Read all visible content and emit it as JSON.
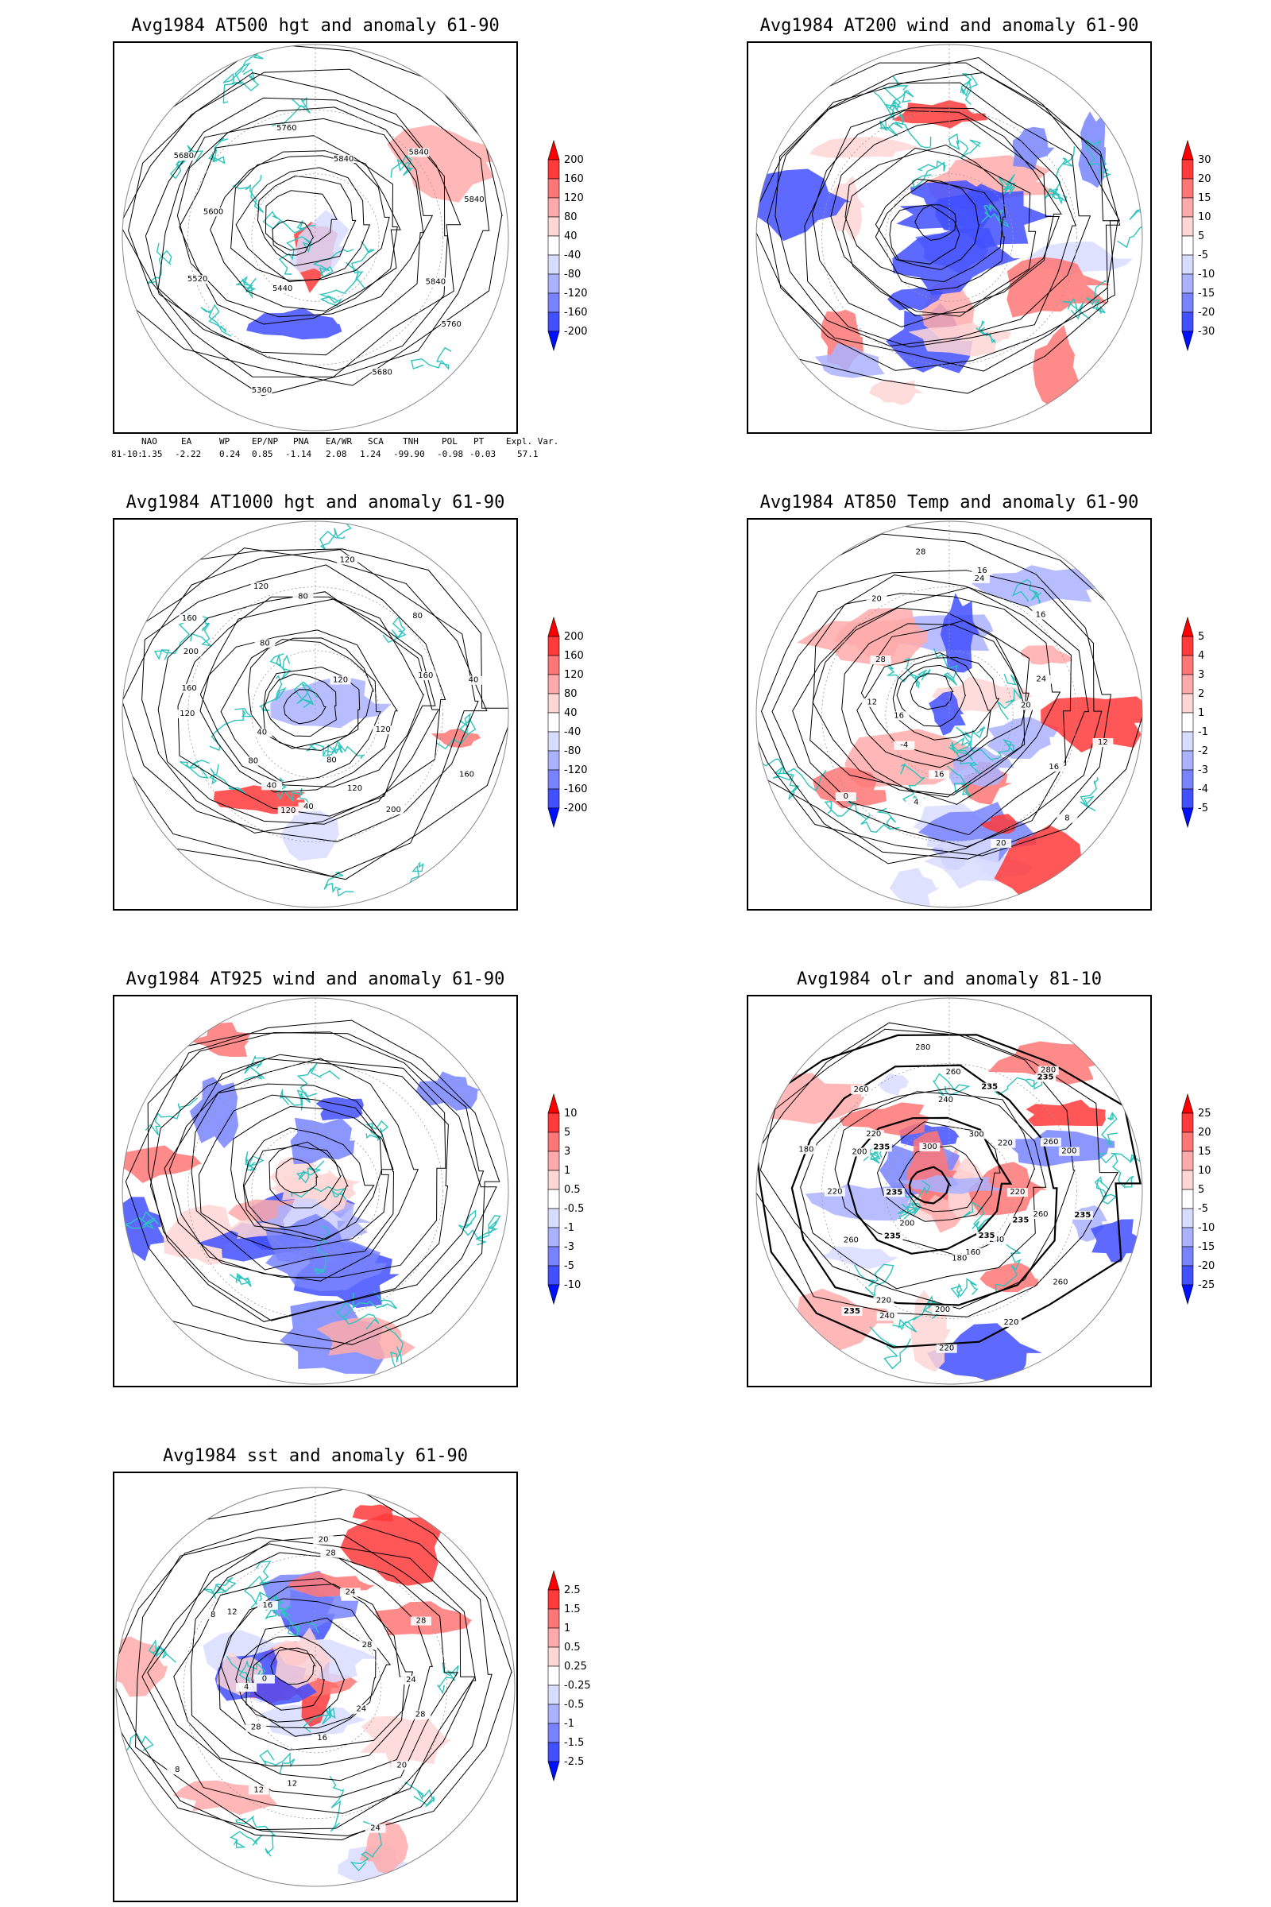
{
  "panels": [
    {
      "id": "at500",
      "title": "Avg1984 AT500 hgt and anomaly 61-90",
      "field": "hgt",
      "contour_labels": [
        "5840",
        "5760",
        "5680",
        "5360",
        "5440",
        "5520",
        "5600",
        "5680",
        "5760",
        "5840",
        "5840",
        "5840"
      ],
      "colorbar": [
        "200",
        "160",
        "120",
        "80",
        "40",
        "-40",
        "-80",
        "-120",
        "-160",
        "-200"
      ]
    },
    {
      "id": "at200",
      "title": "Avg1984 AT200 wind and anomaly 61-90",
      "field": "wind",
      "contour_labels": [],
      "colorbar": [
        "30",
        "20",
        "15",
        "10",
        "5",
        "-5",
        "-10",
        "-15",
        "-20",
        "-30"
      ]
    },
    {
      "id": "at1000",
      "title": "Avg1984 AT1000 hgt and anomaly 61-90",
      "field": "hgt",
      "contour_labels": [
        "120",
        "160",
        "200",
        "120",
        "80",
        "40",
        "120",
        "40",
        "80",
        "40",
        "120",
        "160",
        "200",
        "160",
        "80",
        "120",
        "80",
        "120",
        "120",
        "80",
        "160",
        "40"
      ],
      "colorbar": [
        "200",
        "160",
        "120",
        "80",
        "40",
        "-40",
        "-80",
        "-120",
        "-160",
        "-200"
      ]
    },
    {
      "id": "at850",
      "title": "Avg1984 AT850 Temp and anomaly 61-90",
      "field": "temp",
      "contour_labels": [
        "12",
        "16",
        "8",
        "20",
        "16",
        "4",
        "0",
        "-4",
        "16",
        "12",
        "28",
        "20",
        "28",
        "24",
        "16",
        "16",
        "24",
        "20"
      ],
      "colorbar": [
        "5",
        "4",
        "3",
        "2",
        "1",
        "-1",
        "-2",
        "-3",
        "-4",
        "-5"
      ]
    },
    {
      "id": "at925",
      "title": "Avg1984 AT925 wind and anomaly 61-90",
      "field": "wind",
      "contour_labels": [],
      "colorbar": [
        "10",
        "5",
        "3",
        "1",
        "0.5",
        "-0.5",
        "-1",
        "-3",
        "-5",
        "-10"
      ]
    },
    {
      "id": "olr",
      "title": "Avg1984 olr and anomaly 81-10",
      "field": "olr",
      "contour_labels": [
        "260",
        "235",
        "260",
        "240",
        "235",
        "220",
        "160",
        "180",
        "200",
        "220",
        "240",
        "235",
        "220",
        "200",
        "235",
        "260",
        "235",
        "220",
        "180",
        "235",
        "200",
        "220",
        "260",
        "300",
        "280",
        "260",
        "240",
        "235",
        "300",
        "280",
        "235",
        "220",
        "260",
        "200",
        "220",
        "235"
      ],
      "colorbar": [
        "25",
        "20",
        "15",
        "10",
        "5",
        "-5",
        "-10",
        "-15",
        "-20",
        "-25"
      ]
    },
    {
      "id": "sst",
      "title": "Avg1984 sst and anomaly 61-90",
      "field": "sst",
      "contour_labels": [
        "28",
        "24",
        "20",
        "24",
        "16",
        "12",
        "12",
        "28",
        "8",
        "4",
        "0",
        "8",
        "12",
        "16",
        "20",
        "28",
        "24",
        "28",
        "28",
        "24"
      ],
      "colorbar": [
        "2.5",
        "1.5",
        "1",
        "0.5",
        "0.25",
        "-0.25",
        "-0.5",
        "-1",
        "-1.5",
        "-2.5"
      ]
    }
  ],
  "indices": {
    "headers": [
      "NAO",
      "EA",
      "WP",
      "EP/NP",
      "PNA",
      "EA/WR",
      "SCA",
      "TNH",
      "POL",
      "PT",
      "Expl. Var."
    ],
    "row_label": "81-10:",
    "values": [
      "1.35",
      "-2.22",
      "0.24",
      "0.85",
      "-1.14",
      "2.08",
      "1.24",
      "-99.90",
      "-0.98",
      "-0.03",
      "57.1"
    ]
  },
  "colors": {
    "coast": "#2ec4be",
    "pos": [
      "#ff0000",
      "#ff3a3a",
      "#ff7676",
      "#ffaaaa",
      "#ffd6d6"
    ],
    "neg": [
      "#d8dcff",
      "#aab2ff",
      "#7884ff",
      "#4250ff",
      "#0010ff"
    ]
  },
  "chart_data": [
    {
      "type": "heatmap",
      "panel": "at500",
      "title": "Avg1984 AT500 hgt and anomaly 61-90",
      "colorbar_levels": [
        -200,
        -160,
        -120,
        -80,
        -40,
        40,
        80,
        120,
        160,
        200
      ]
    },
    {
      "type": "heatmap",
      "panel": "at200",
      "title": "Avg1984 AT200 wind and anomaly 61-90",
      "colorbar_levels": [
        -30,
        -20,
        -15,
        -10,
        -5,
        5,
        10,
        15,
        20,
        30
      ]
    },
    {
      "type": "heatmap",
      "panel": "at1000",
      "title": "Avg1984 AT1000 hgt and anomaly 61-90",
      "colorbar_levels": [
        -200,
        -160,
        -120,
        -80,
        -40,
        40,
        80,
        120,
        160,
        200
      ]
    },
    {
      "type": "heatmap",
      "panel": "at850",
      "title": "Avg1984 AT850 Temp and anomaly 61-90",
      "colorbar_levels": [
        -5,
        -4,
        -3,
        -2,
        -1,
        1,
        2,
        3,
        4,
        5
      ]
    },
    {
      "type": "heatmap",
      "panel": "at925",
      "title": "Avg1984 AT925 wind and anomaly 61-90",
      "colorbar_levels": [
        -10,
        -5,
        -3,
        -1,
        -0.5,
        0.5,
        1,
        3,
        5,
        10
      ]
    },
    {
      "type": "heatmap",
      "panel": "olr",
      "title": "Avg1984 olr and anomaly 81-10",
      "colorbar_levels": [
        -25,
        -20,
        -15,
        -10,
        -5,
        5,
        10,
        15,
        20,
        25
      ]
    },
    {
      "type": "heatmap",
      "panel": "sst",
      "title": "Avg1984 sst and anomaly 61-90",
      "colorbar_levels": [
        -2.5,
        -1.5,
        -1,
        -0.5,
        -0.25,
        0.25,
        0.5,
        1,
        1.5,
        2.5
      ]
    },
    {
      "type": "table",
      "title": "",
      "columns": [
        "NAO",
        "EA",
        "WP",
        "EP/NP",
        "PNA",
        "EA/WR",
        "SCA",
        "TNH",
        "POL",
        "PT",
        "Expl. Var."
      ],
      "rows": [
        {
          "label": "81-10:",
          "values": [
            1.35,
            -2.22,
            0.24,
            0.85,
            -1.14,
            2.08,
            1.24,
            -99.9,
            -0.98,
            -0.03,
            57.1
          ]
        }
      ]
    }
  ]
}
